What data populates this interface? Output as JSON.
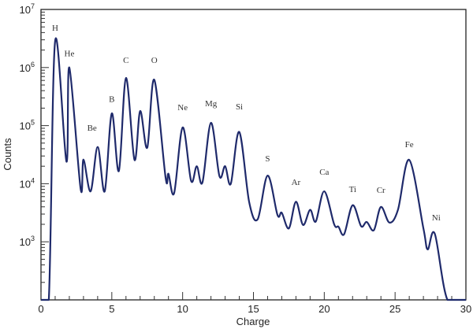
{
  "chart_data": {
    "type": "line",
    "title": "",
    "xlabel": "Charge",
    "ylabel": "Counts",
    "xlim": [
      0,
      30
    ],
    "ylim": [
      100,
      10000000
    ],
    "yscale": "log",
    "grid": false,
    "line_color": "#1f2a6b",
    "x_ticks": [
      0,
      5,
      10,
      15,
      20,
      25,
      30
    ],
    "y_ticks": [
      {
        "value": 1000,
        "label": "10",
        "exp": "3"
      },
      {
        "value": 10000,
        "label": "10",
        "exp": "4"
      },
      {
        "value": 100000,
        "label": "10",
        "exp": "5"
      },
      {
        "value": 1000000,
        "label": "10",
        "exp": "6"
      },
      {
        "value": 10000000,
        "label": "10",
        "exp": "7"
      }
    ],
    "series": [
      {
        "x": [
          0,
          0.55,
          1.0,
          1.8,
          2.0,
          2.8,
          3.0,
          3.5,
          4.0,
          4.5,
          5.0,
          5.5,
          6.0,
          6.6,
          7.0,
          7.5,
          8.0,
          8.8,
          9.0,
          9.4,
          10.0,
          10.6,
          11.0,
          11.4,
          12.0,
          12.6,
          13.0,
          13.4,
          14.0,
          14.7,
          15.3,
          16.0,
          16.7,
          17.0,
          17.5,
          18.0,
          18.5,
          19.0,
          19.4,
          20.0,
          20.7,
          21.0,
          21.4,
          22.0,
          22.6,
          23.0,
          23.5,
          24.0,
          24.6,
          25.2,
          26.0,
          27.0,
          27.3,
          27.8,
          28.7,
          30
        ],
        "y": [
          100,
          100,
          2900000,
          24000,
          1000000,
          8100,
          26000,
          7400,
          43000,
          7400,
          162000,
          16600,
          660000,
          25700,
          178000,
          41700,
          617000,
          12600,
          14800,
          6900,
          93000,
          11200,
          20000,
          10500,
          112000,
          13500,
          20000,
          10000,
          78000,
          4800,
          2450,
          13800,
          2900,
          3160,
          1700,
          4900,
          1950,
          3550,
          2240,
          7400,
          2000,
          1820,
          1350,
          4270,
          1860,
          2190,
          1580,
          3980,
          2140,
          3550,
          25700,
          1700,
          740,
          1380,
          100,
          100
        ]
      }
    ],
    "annotations": [
      {
        "text": "H",
        "x": 1.0,
        "y": 4900000
      },
      {
        "text": "He",
        "x": 2.0,
        "y": 1780000
      },
      {
        "text": "Be",
        "x": 3.6,
        "y": 93000
      },
      {
        "text": "B",
        "x": 5.0,
        "y": 288000
      },
      {
        "text": "C",
        "x": 6.0,
        "y": 1350000
      },
      {
        "text": "O",
        "x": 8.0,
        "y": 1350000
      },
      {
        "text": "Ne",
        "x": 10.0,
        "y": 209000
      },
      {
        "text": "Mg",
        "x": 12.0,
        "y": 245000
      },
      {
        "text": "Si",
        "x": 14.0,
        "y": 214000
      },
      {
        "text": "S",
        "x": 16.0,
        "y": 27500
      },
      {
        "text": "Ar",
        "x": 18.0,
        "y": 10700
      },
      {
        "text": "Ca",
        "x": 20.0,
        "y": 16200
      },
      {
        "text": "Ti",
        "x": 22.0,
        "y": 8100
      },
      {
        "text": "Cr",
        "x": 24.0,
        "y": 7900
      },
      {
        "text": "Fe",
        "x": 26.0,
        "y": 47900
      },
      {
        "text": "Ni",
        "x": 27.9,
        "y": 2630
      }
    ]
  }
}
